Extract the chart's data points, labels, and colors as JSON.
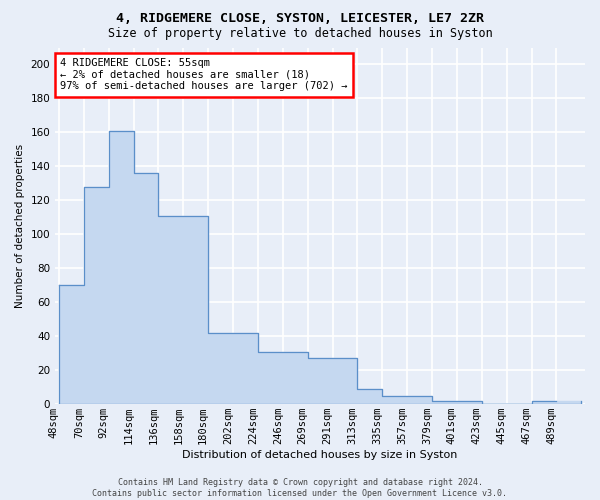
{
  "title": "4, RIDGEMERE CLOSE, SYSTON, LEICESTER, LE7 2ZR",
  "subtitle": "Size of property relative to detached houses in Syston",
  "xlabel": "Distribution of detached houses by size in Syston",
  "ylabel": "Number of detached properties",
  "bar_color": "#c5d8f0",
  "bar_edge_color": "#5b8fc9",
  "categories": [
    "48sqm",
    "70sqm",
    "92sqm",
    "114sqm",
    "136sqm",
    "158sqm",
    "180sqm",
    "202sqm",
    "224sqm",
    "246sqm",
    "269sqm",
    "291sqm",
    "313sqm",
    "335sqm",
    "357sqm",
    "379sqm",
    "401sqm",
    "423sqm",
    "445sqm",
    "467sqm",
    "489sqm"
  ],
  "bar_heights": [
    70,
    128,
    161,
    136,
    111,
    111,
    42,
    42,
    31,
    31,
    27,
    27,
    9,
    5,
    5,
    2,
    2,
    0,
    0,
    2,
    2
  ],
  "ylim": [
    0,
    210
  ],
  "yticks": [
    0,
    20,
    40,
    60,
    80,
    100,
    120,
    140,
    160,
    180,
    200
  ],
  "annotation_text": "4 RIDGEMERE CLOSE: 55sqm\n← 2% of detached houses are smaller (18)\n97% of semi-detached houses are larger (702) →",
  "footer": "Contains HM Land Registry data © Crown copyright and database right 2024.\nContains public sector information licensed under the Open Government Licence v3.0.",
  "bg_color": "#e8eef8",
  "plot_bg_color": "#e8eef8",
  "grid_color": "#ffffff"
}
